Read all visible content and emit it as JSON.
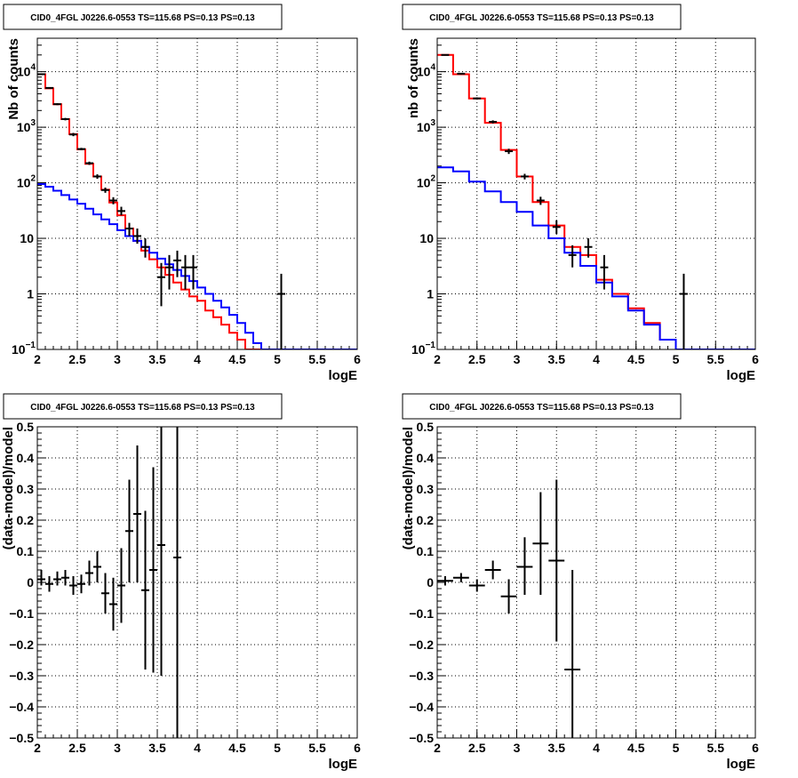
{
  "chart_data": [
    {
      "type": "line",
      "title": "CID0_4FGL J0226.6-0553 TS=115.68 PS=0.13 PS=0.13",
      "xlabel": "logE",
      "ylabel": "Nb of counts",
      "xlim": [
        2,
        6
      ],
      "ylim": [
        0.1,
        40000
      ],
      "yscale": "log",
      "grid": true,
      "xticks": [
        "2",
        "2.5",
        "3",
        "3.5",
        "4",
        "4.5",
        "5",
        "5.5",
        "6"
      ],
      "yticks": [
        {
          "v": 0.1,
          "label": "10",
          "exp": "−1"
        },
        {
          "v": 1,
          "label": "1",
          "exp": ""
        },
        {
          "v": 10,
          "label": "10",
          "exp": ""
        },
        {
          "v": 100,
          "label": "10",
          "exp": "2"
        },
        {
          "v": 1000,
          "label": "10",
          "exp": "3"
        },
        {
          "v": 10000,
          "label": "10",
          "exp": "4"
        }
      ],
      "bin_edges": [
        2.0,
        2.1,
        2.2,
        2.3,
        2.4,
        2.5,
        2.6,
        2.7,
        2.8,
        2.9,
        3.0,
        3.1,
        3.2,
        3.3,
        3.4,
        3.5,
        3.6,
        3.7,
        3.8,
        3.9,
        4.0,
        4.1,
        4.2,
        4.3,
        4.4,
        4.5,
        4.6,
        4.7,
        4.8,
        4.9,
        5.0,
        5.1,
        5.2,
        5.3,
        5.4,
        5.5,
        5.6,
        5.7,
        5.8,
        5.9,
        6.0
      ],
      "series": [
        {
          "color": "#ff0000",
          "kind": "step",
          "values": [
            9000,
            5000,
            2600,
            1400,
            750,
            400,
            220,
            130,
            75,
            44,
            26,
            15,
            9,
            6,
            4.2,
            3,
            2.2,
            1.6,
            1.2,
            0.9,
            0.75,
            0.5,
            0.38,
            0.28,
            0.2,
            0.15,
            0.1,
            0.1,
            0.1,
            0.1,
            0.1,
            0.1,
            0.1,
            0.1,
            0.1,
            0.1,
            0.1,
            0.1,
            0.1,
            0.1
          ]
        },
        {
          "color": "#0000ff",
          "kind": "step",
          "values": [
            95,
            85,
            72,
            60,
            50,
            42,
            34,
            27,
            22,
            18,
            14,
            11,
            9,
            7,
            5.5,
            4.3,
            3.4,
            2.7,
            2.1,
            1.7,
            1.3,
            1.0,
            0.75,
            0.57,
            0.42,
            0.3,
            0.2,
            0.13,
            0.1,
            0.1,
            0.1,
            0.1,
            0.1,
            0.1,
            0.1,
            0.1,
            0.1,
            0.1,
            0.1,
            0.1
          ]
        },
        {
          "color": "#000000",
          "kind": "points",
          "points": [
            {
              "x": 2.05,
              "y": 9000,
              "ylo": 8800,
              "yhi": 9200
            },
            {
              "x": 2.15,
              "y": 5100,
              "ylo": 4950,
              "yhi": 5250
            },
            {
              "x": 2.25,
              "y": 2600,
              "ylo": 2500,
              "yhi": 2700
            },
            {
              "x": 2.35,
              "y": 1400,
              "ylo": 1330,
              "yhi": 1470
            },
            {
              "x": 2.45,
              "y": 740,
              "ylo": 690,
              "yhi": 790
            },
            {
              "x": 2.55,
              "y": 405,
              "ylo": 385,
              "yhi": 425
            },
            {
              "x": 2.65,
              "y": 225,
              "ylo": 210,
              "yhi": 240
            },
            {
              "x": 2.75,
              "y": 130,
              "ylo": 118,
              "yhi": 142
            },
            {
              "x": 2.85,
              "y": 74,
              "ylo": 66,
              "yhi": 82
            },
            {
              "x": 2.95,
              "y": 48,
              "ylo": 41,
              "yhi": 55
            },
            {
              "x": 3.05,
              "y": 31,
              "ylo": 26,
              "yhi": 37
            },
            {
              "x": 3.15,
              "y": 15,
              "ylo": 11,
              "yhi": 19
            },
            {
              "x": 3.25,
              "y": 11,
              "ylo": 8,
              "yhi": 15
            },
            {
              "x": 3.35,
              "y": 7,
              "ylo": 4.5,
              "yhi": 10
            },
            {
              "x": 3.55,
              "y": 2,
              "ylo": 0.6,
              "yhi": 3.6
            },
            {
              "x": 3.65,
              "y": 3,
              "ylo": 1.2,
              "yhi": 5
            },
            {
              "x": 3.75,
              "y": 4,
              "ylo": 2,
              "yhi": 6
            },
            {
              "x": 3.85,
              "y": 3,
              "ylo": 1.2,
              "yhi": 5
            },
            {
              "x": 3.95,
              "y": 3,
              "ylo": 1.2,
              "yhi": 5
            },
            {
              "x": 5.05,
              "y": 1,
              "ylo": 0.1,
              "yhi": 2.3
            }
          ]
        }
      ]
    },
    {
      "type": "line",
      "title": "CID0_4FGL J0226.6-0553 TS=115.68 PS=0.13 PS=0.13",
      "xlabel": "logE",
      "ylabel": "nb of counts",
      "xlim": [
        2,
        6
      ],
      "ylim": [
        0.1,
        40000
      ],
      "yscale": "log",
      "grid": true,
      "xticks": [
        "2",
        "2.5",
        "3",
        "3.5",
        "4",
        "4.5",
        "5",
        "5.5",
        "6"
      ],
      "yticks": [
        {
          "v": 0.1,
          "label": "10",
          "exp": "−1"
        },
        {
          "v": 1,
          "label": "1",
          "exp": ""
        },
        {
          "v": 10,
          "label": "10",
          "exp": ""
        },
        {
          "v": 100,
          "label": "10",
          "exp": "2"
        },
        {
          "v": 1000,
          "label": "10",
          "exp": "3"
        },
        {
          "v": 10000,
          "label": "10",
          "exp": "4"
        }
      ],
      "bin_edges": [
        2.0,
        2.2,
        2.4,
        2.6,
        2.8,
        3.0,
        3.2,
        3.4,
        3.6,
        3.8,
        4.0,
        4.2,
        4.4,
        4.6,
        4.8,
        5.0,
        5.2,
        5.4,
        5.6,
        5.8,
        6.0
      ],
      "series": [
        {
          "color": "#ff0000",
          "kind": "step",
          "values": [
            20000,
            9000,
            3300,
            1200,
            390,
            130,
            45,
            17,
            7,
            5,
            1.8,
            1.0,
            0.55,
            0.3,
            0.15,
            0.1,
            0.1,
            0.1,
            0.1,
            0.1
          ]
        },
        {
          "color": "#0000ff",
          "kind": "step",
          "values": [
            190,
            160,
            105,
            70,
            45,
            30,
            17,
            10,
            5.5,
            3.2,
            1.6,
            0.9,
            0.5,
            0.28,
            0.15,
            0.1,
            0.1,
            0.1,
            0.1,
            0.1
          ]
        },
        {
          "color": "#000000",
          "kind": "points",
          "points": [
            {
              "x": 2.1,
              "y": 20000,
              "ylo": 19500,
              "yhi": 20500
            },
            {
              "x": 2.3,
              "y": 9200,
              "ylo": 8900,
              "yhi": 9500
            },
            {
              "x": 2.5,
              "y": 3300,
              "ylo": 3150,
              "yhi": 3450
            },
            {
              "x": 2.7,
              "y": 1250,
              "ylo": 1170,
              "yhi": 1330
            },
            {
              "x": 2.9,
              "y": 370,
              "ylo": 330,
              "yhi": 410
            },
            {
              "x": 3.1,
              "y": 130,
              "ylo": 115,
              "yhi": 145
            },
            {
              "x": 3.3,
              "y": 48,
              "ylo": 40,
              "yhi": 56
            },
            {
              "x": 3.5,
              "y": 16,
              "ylo": 12,
              "yhi": 21
            },
            {
              "x": 3.7,
              "y": 5,
              "ylo": 3,
              "yhi": 7.5
            },
            {
              "x": 3.9,
              "y": 7,
              "ylo": 4.5,
              "yhi": 10
            },
            {
              "x": 4.1,
              "y": 3,
              "ylo": 1.2,
              "yhi": 5
            },
            {
              "x": 5.1,
              "y": 1,
              "ylo": 0.1,
              "yhi": 2.3
            }
          ]
        }
      ]
    },
    {
      "type": "scatter",
      "title": "CID0_4FGL J0226.6-0553 TS=115.68 PS=0.13 PS=0.13",
      "xlabel": "logE",
      "ylabel": "(data-model)/model",
      "xlim": [
        2,
        6
      ],
      "ylim": [
        -0.5,
        0.5
      ],
      "yscale": "linear",
      "grid": true,
      "xticks": [
        "2",
        "2.5",
        "3",
        "3.5",
        "4",
        "4.5",
        "5",
        "5.5",
        "6"
      ],
      "yticks": [
        {
          "v": -0.5,
          "label": "−0.5",
          "exp": ""
        },
        {
          "v": -0.4,
          "label": "−0.4",
          "exp": ""
        },
        {
          "v": -0.3,
          "label": "−0.3",
          "exp": ""
        },
        {
          "v": -0.2,
          "label": "−0.2",
          "exp": ""
        },
        {
          "v": -0.1,
          "label": "−0.1",
          "exp": ""
        },
        {
          "v": 0,
          "label": "0",
          "exp": ""
        },
        {
          "v": 0.1,
          "label": "0.1",
          "exp": ""
        },
        {
          "v": 0.2,
          "label": "0.2",
          "exp": ""
        },
        {
          "v": 0.3,
          "label": "0.3",
          "exp": ""
        },
        {
          "v": 0.4,
          "label": "0.4",
          "exp": ""
        },
        {
          "v": 0.5,
          "label": "0.5",
          "exp": ""
        }
      ],
      "series": [
        {
          "color": "#000000",
          "kind": "points",
          "halfwidth": 0.05,
          "points": [
            {
              "x": 2.05,
              "y": 0.01,
              "ylo": -0.01,
              "yhi": 0.04
            },
            {
              "x": 2.15,
              "y": -0.005,
              "ylo": -0.03,
              "yhi": 0.02
            },
            {
              "x": 2.25,
              "y": 0.01,
              "ylo": -0.01,
              "yhi": 0.035
            },
            {
              "x": 2.35,
              "y": 0.015,
              "ylo": -0.01,
              "yhi": 0.04
            },
            {
              "x": 2.45,
              "y": -0.01,
              "ylo": -0.04,
              "yhi": 0.02
            },
            {
              "x": 2.55,
              "y": -0.005,
              "ylo": -0.035,
              "yhi": 0.025
            },
            {
              "x": 2.65,
              "y": 0.03,
              "ylo": -0.01,
              "yhi": 0.07
            },
            {
              "x": 2.75,
              "y": 0.05,
              "ylo": 0.0,
              "yhi": 0.1
            },
            {
              "x": 2.85,
              "y": -0.035,
              "ylo": -0.1,
              "yhi": 0.03
            },
            {
              "x": 2.95,
              "y": -0.07,
              "ylo": -0.155,
              "yhi": 0.015
            },
            {
              "x": 3.05,
              "y": -0.01,
              "ylo": -0.13,
              "yhi": 0.11
            },
            {
              "x": 3.15,
              "y": 0.165,
              "ylo": 0.0,
              "yhi": 0.33
            },
            {
              "x": 3.25,
              "y": 0.22,
              "ylo": 0.0,
              "yhi": 0.44
            },
            {
              "x": 3.35,
              "y": -0.025,
              "ylo": -0.28,
              "yhi": 0.23
            },
            {
              "x": 3.45,
              "y": 0.04,
              "ylo": -0.29,
              "yhi": 0.37
            },
            {
              "x": 3.55,
              "y": 0.12,
              "ylo": -0.3,
              "yhi": 0.5
            },
            {
              "x": 3.75,
              "y": 0.08,
              "ylo": -0.5,
              "yhi": 0.5
            }
          ]
        }
      ]
    },
    {
      "type": "scatter",
      "title": "CID0_4FGL J0226.6-0553 TS=115.68 PS=0.13 PS=0.13",
      "xlabel": "logE",
      "ylabel": "(data-model)/model",
      "xlim": [
        2,
        6
      ],
      "ylim": [
        -0.5,
        0.5
      ],
      "yscale": "linear",
      "grid": true,
      "xticks": [
        "2",
        "2.5",
        "3",
        "3.5",
        "4",
        "4.5",
        "5",
        "5.5",
        "6"
      ],
      "yticks": [
        {
          "v": -0.5,
          "label": "−0.5",
          "exp": ""
        },
        {
          "v": -0.4,
          "label": "−0.4",
          "exp": ""
        },
        {
          "v": -0.3,
          "label": "−0.3",
          "exp": ""
        },
        {
          "v": -0.2,
          "label": "−0.2",
          "exp": ""
        },
        {
          "v": -0.1,
          "label": "−0.1",
          "exp": ""
        },
        {
          "v": 0,
          "label": "0",
          "exp": ""
        },
        {
          "v": 0.1,
          "label": "0.1",
          "exp": ""
        },
        {
          "v": 0.2,
          "label": "0.2",
          "exp": ""
        },
        {
          "v": 0.3,
          "label": "0.3",
          "exp": ""
        },
        {
          "v": 0.4,
          "label": "0.4",
          "exp": ""
        },
        {
          "v": 0.5,
          "label": "0.5",
          "exp": ""
        }
      ],
      "series": [
        {
          "color": "#000000",
          "kind": "points",
          "halfwidth": 0.1,
          "points": [
            {
              "x": 2.1,
              "y": 0.005,
              "ylo": -0.01,
              "yhi": 0.02
            },
            {
              "x": 2.3,
              "y": 0.015,
              "ylo": 0.0,
              "yhi": 0.03
            },
            {
              "x": 2.5,
              "y": -0.01,
              "ylo": -0.03,
              "yhi": 0.01
            },
            {
              "x": 2.7,
              "y": 0.04,
              "ylo": 0.01,
              "yhi": 0.07
            },
            {
              "x": 2.9,
              "y": -0.045,
              "ylo": -0.1,
              "yhi": 0.01
            },
            {
              "x": 3.1,
              "y": 0.05,
              "ylo": -0.04,
              "yhi": 0.145
            },
            {
              "x": 3.3,
              "y": 0.125,
              "ylo": -0.04,
              "yhi": 0.29
            },
            {
              "x": 3.5,
              "y": 0.07,
              "ylo": -0.19,
              "yhi": 0.33
            },
            {
              "x": 3.7,
              "y": -0.28,
              "ylo": -0.5,
              "yhi": 0.04
            }
          ]
        }
      ]
    }
  ]
}
